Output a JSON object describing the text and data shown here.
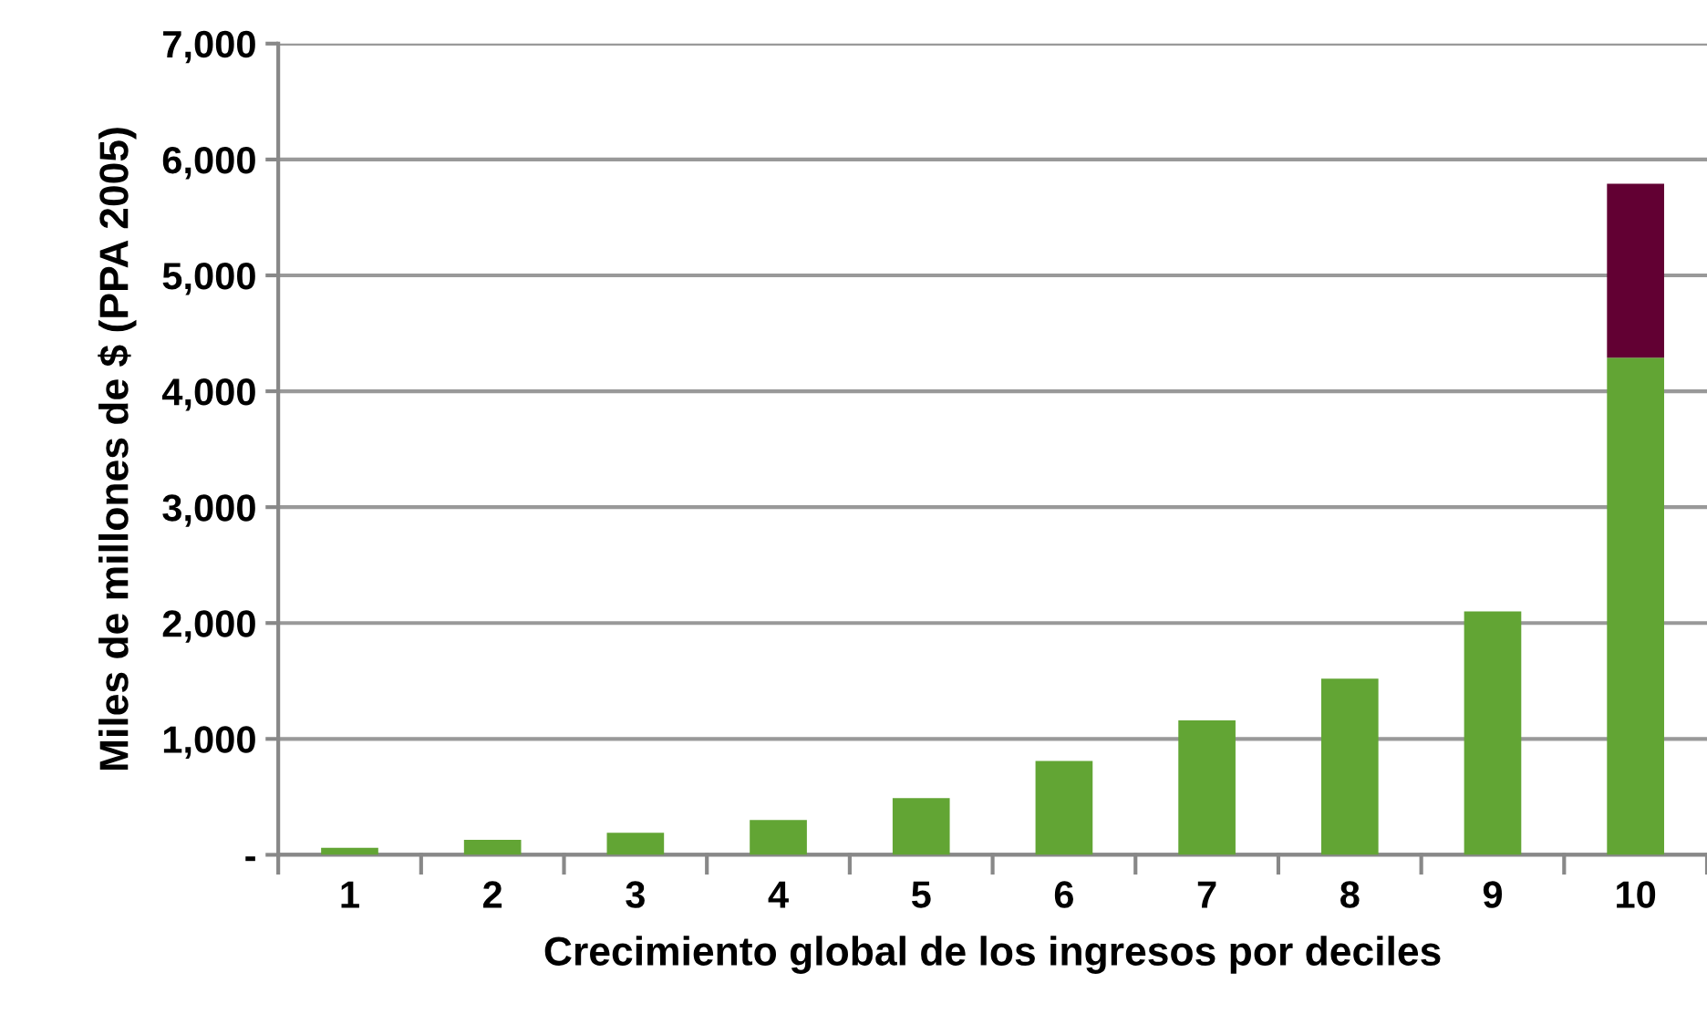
{
  "chart_data": {
    "type": "bar",
    "stacked": true,
    "xlabel": "Crecimiento global de los ingresos por deciles",
    "ylabel": "Miles de millones de $ (PPA 2005)",
    "categories": [
      "1",
      "2",
      "3",
      "4",
      "5",
      "6",
      "7",
      "8",
      "9",
      "10"
    ],
    "series": [
      {
        "color": "#62a534",
        "values": [
          60,
          130,
          190,
          300,
          490,
          810,
          1160,
          1520,
          2100,
          4290
        ]
      },
      {
        "color": "#620033",
        "values": [
          null,
          null,
          null,
          null,
          null,
          null,
          null,
          null,
          null,
          1500
        ]
      }
    ],
    "ylim": [
      0,
      7000
    ],
    "yticks": [
      {
        "value": 0,
        "label": "-"
      },
      {
        "value": 1000,
        "label": "1,000"
      },
      {
        "value": 2000,
        "label": "2,000"
      },
      {
        "value": 3000,
        "label": "3,000"
      },
      {
        "value": 4000,
        "label": "4,000"
      },
      {
        "value": 5000,
        "label": "5,000"
      },
      {
        "value": 6000,
        "label": "6,000"
      },
      {
        "value": 7000,
        "label": "7,000"
      }
    ],
    "grid": "y",
    "legend": false
  }
}
